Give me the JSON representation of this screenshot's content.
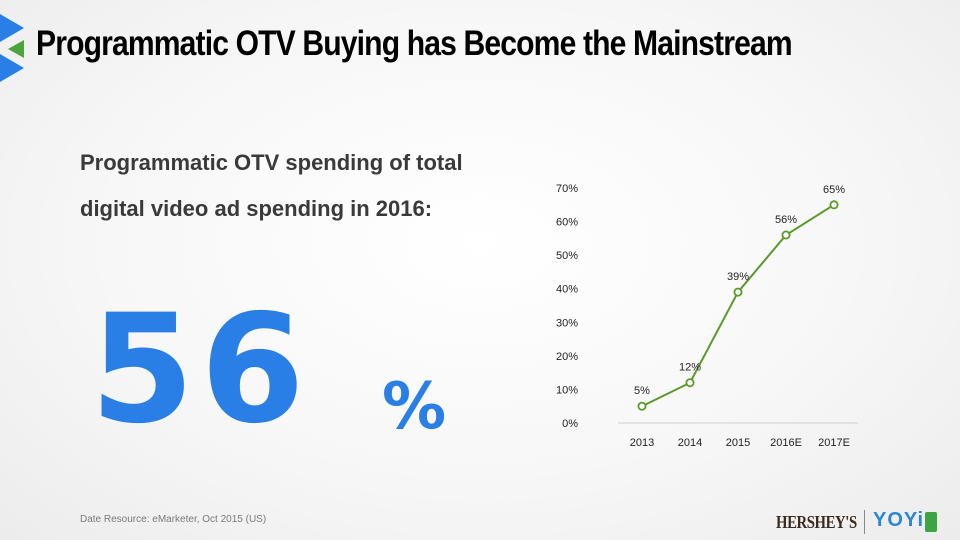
{
  "slide": {
    "title": "Programmatic  OTV Buying has Become the Mainstream",
    "subtitle": "Programmatic OTV spending of total digital video ad spending in 2016:",
    "big_value": "56",
    "percent_symbol": "%",
    "footnote": "Date Resource: eMarketer, Oct 2015 (US)"
  },
  "brand": {
    "hersheys": "HERSHEY'S",
    "yoyi": "YOYi"
  },
  "colors": {
    "accent_blue": "#2a7fe6",
    "line_green": "#5a9a2a",
    "axis_text": "#222222"
  },
  "chart_data": {
    "type": "line",
    "x": [
      "2013",
      "2014",
      "2015",
      "2016E",
      "2017E"
    ],
    "series": [
      {
        "values": [
          5,
          12,
          39,
          56,
          65
        ],
        "labels": [
          "5%",
          "12%",
          "39%",
          "56%",
          "65%"
        ]
      }
    ],
    "ylim": [
      0,
      70
    ],
    "yticks": [
      "0%",
      "10%",
      "20%",
      "30%",
      "40%",
      "50%",
      "60%",
      "70%"
    ],
    "xlabel": "",
    "ylabel": "",
    "grid": false,
    "legend": "none"
  }
}
